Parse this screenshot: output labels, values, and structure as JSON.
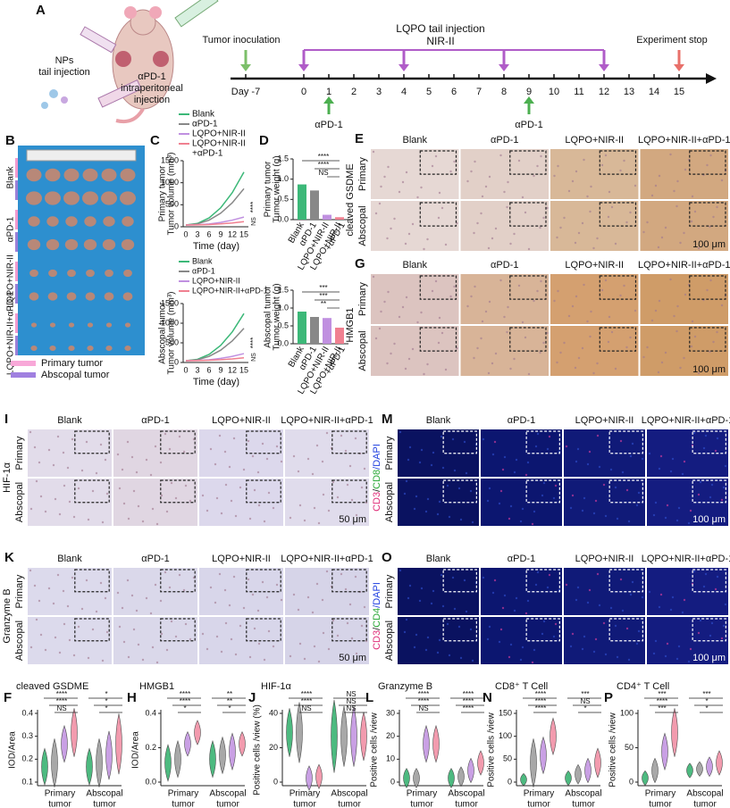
{
  "panels": {
    "A": {
      "letter": "A",
      "np_label": [
        "NPs",
        "tail injection"
      ],
      "apd1_label": [
        "αPD-1",
        "intraperitoneal",
        "injection"
      ],
      "tumor_inoculation": "Tumor inoculation",
      "lqpo": [
        "LQPO tail injection",
        "NIR-II"
      ],
      "experiment_stop": "Experiment stop",
      "days": [
        "Day -7",
        "0",
        "1",
        "2",
        "3",
        "4",
        "5",
        "6",
        "7",
        "8",
        "9",
        "10",
        "11",
        "12",
        "13",
        "14",
        "15"
      ],
      "apd1_marks": [
        "αPD-1",
        "αPD-1"
      ]
    },
    "B": {
      "letter": "B",
      "rows": [
        "Blank",
        "αPD-1",
        "LQPO+NIR-II",
        "LQPO+NIR-II+αPD-1"
      ],
      "legend": [
        "Primary tumor",
        "Abscopal tumor"
      ]
    },
    "C": {
      "letter": "C",
      "legend": [
        "Blank",
        "αPD-1",
        "LQPO+NIR-II",
        "LQPO+NIR-II",
        "+αPD-1"
      ],
      "top_ylabel": [
        "Primary tumor",
        "Tumor volume (mm³)"
      ],
      "yticks": [
        "0",
        "500",
        "1000",
        "1500"
      ],
      "xticks": [
        "0",
        "3",
        "6",
        "9",
        "12",
        "15"
      ],
      "xlabel": "Time (day)",
      "sig": [
        "****",
        "NS"
      ],
      "bottom_legend": [
        "Blank",
        "αPD-1",
        "LQPO+NIR-II",
        "LQPO+NIR-II+αPD-1"
      ],
      "bottom_ylabel": [
        "Abscopal tumor",
        "Tumor volume (mm³)"
      ]
    },
    "D": {
      "letter": "D",
      "top_ylabel": [
        "Primary tumor",
        "Tumor weight (g)"
      ],
      "yticks": [
        "0.0",
        "0.5",
        "1.0",
        "1.5"
      ],
      "top_sig": [
        "****",
        "****",
        "NS"
      ],
      "xlabels": [
        "Blank",
        "αPD-1",
        "LQPO+NIR-II",
        "LQPO+NIR-II",
        "+αPD-1"
      ],
      "bottom_ylabel": [
        "Abscopal tumor",
        "Tumor weight (g)"
      ],
      "bottom_sig": [
        "***",
        "***",
        "**"
      ]
    },
    "E": {
      "letter": "E",
      "columns": [
        "Blank",
        "αPD-1",
        "LQPO+NIR-II",
        "LQPO+NIR-II+αPD-1"
      ],
      "rows": [
        "Primary",
        "Abscopal"
      ],
      "stain": "cleaved GSDME",
      "scale": "100 μm"
    },
    "G": {
      "letter": "G",
      "columns": [
        "Blank",
        "αPD-1",
        "LQPO+NIR-II",
        "LQPO+NIR-II+αPD-1"
      ],
      "rows": [
        "Primary",
        "Abscopal"
      ],
      "stain": "HMGB1",
      "scale": "100 μm"
    },
    "I": {
      "letter": "I",
      "columns": [
        "Blank",
        "αPD-1",
        "LQPO+NIR-II",
        "LQPO+NIR-II+αPD-1"
      ],
      "rows": [
        "Primary",
        "Abscopal"
      ],
      "stain": "HIF-1α",
      "scale": "50 μm"
    },
    "K": {
      "letter": "K",
      "columns": [
        "Blank",
        "αPD-1",
        "LQPO+NIR-II",
        "LQPO+NIR-II+αPD-1"
      ],
      "rows": [
        "Primary",
        "Abscopal"
      ],
      "stain": "Granzyme B",
      "scale": "50 μm"
    },
    "M": {
      "letter": "M",
      "columns": [
        "Blank",
        "αPD-1",
        "LQPO+NIR-II",
        "LQPO+NIR-II+αPD-1"
      ],
      "rows": [
        "Primary",
        "Abscopal"
      ],
      "stain_parts": [
        "CD3",
        "/",
        "CD8",
        "/DAPI"
      ],
      "scale": "100 μm"
    },
    "O": {
      "letter": "O",
      "columns": [
        "Blank",
        "αPD-1",
        "LQPO+NIR-II",
        "LQPO+NIR-II+αPD-1"
      ],
      "rows": [
        "Primary",
        "Abscopal"
      ],
      "stain_parts": [
        "CD3",
        "/",
        "CD4",
        "/DAPI"
      ],
      "scale": "100 μm"
    },
    "F": {
      "letter": "F",
      "title": "cleaved GSDME",
      "ylabel": "IOD/Area",
      "yticks": [
        "0.1",
        "0.2",
        "0.3",
        "0.4"
      ],
      "groups": [
        [
          "Primary",
          "tumor"
        ],
        [
          "Abscopal",
          "tumor"
        ]
      ],
      "sig": [
        "****",
        "****",
        "NS",
        "*",
        "*",
        "*"
      ]
    },
    "H": {
      "letter": "H",
      "title": "HMGB1",
      "ylabel": "IOD/Area",
      "yticks": [
        "0.0",
        "0.2",
        "0.4"
      ],
      "groups": [
        [
          "Primary",
          "tumor"
        ],
        [
          "Abscopal",
          "tumor"
        ]
      ],
      "sig": [
        "****",
        "****",
        "*",
        "**",
        "**",
        "*"
      ]
    },
    "J": {
      "letter": "J",
      "title": "HIF-1α",
      "ylabel": "Positive cells /view (%)",
      "yticks": [
        "0",
        "20",
        "40"
      ],
      "groups": [
        [
          "Primary",
          "tumor"
        ],
        [
          "Abscopal",
          "tumor"
        ]
      ],
      "sig": [
        "****",
        "****",
        "NS",
        "NS",
        "NS",
        "NS"
      ]
    },
    "L": {
      "letter": "L",
      "title": "Granzyme B",
      "ylabel": "Positive cells /view",
      "yticks": [
        "0",
        "10",
        "20",
        "30"
      ],
      "groups": [
        [
          "Primary",
          "tumor"
        ],
        [
          "Abscopal",
          "tumor"
        ]
      ],
      "sig": [
        "****",
        "****",
        "NS",
        "****",
        "****",
        "****"
      ]
    },
    "N": {
      "letter": "N",
      "title": "CD8⁺ T Cell",
      "ylabel": "Positive cells /view",
      "yticks": [
        "0",
        "50",
        "100",
        "150"
      ],
      "groups": [
        [
          "Primary",
          "tumor"
        ],
        [
          "Abscopal",
          "tumor"
        ]
      ],
      "sig": [
        "****",
        "****",
        "****",
        "***",
        "NS",
        "*"
      ]
    },
    "P": {
      "letter": "P",
      "title": "CD4⁺ T Cell",
      "ylabel": "Positive cells /view",
      "yticks": [
        "0",
        "50",
        "100"
      ],
      "groups": [
        [
          "Primary",
          "tumor"
        ],
        [
          "Abscopal",
          "tumor"
        ]
      ],
      "sig": [
        "***",
        "****",
        "***",
        "***",
        "*",
        "*"
      ]
    }
  }
}
